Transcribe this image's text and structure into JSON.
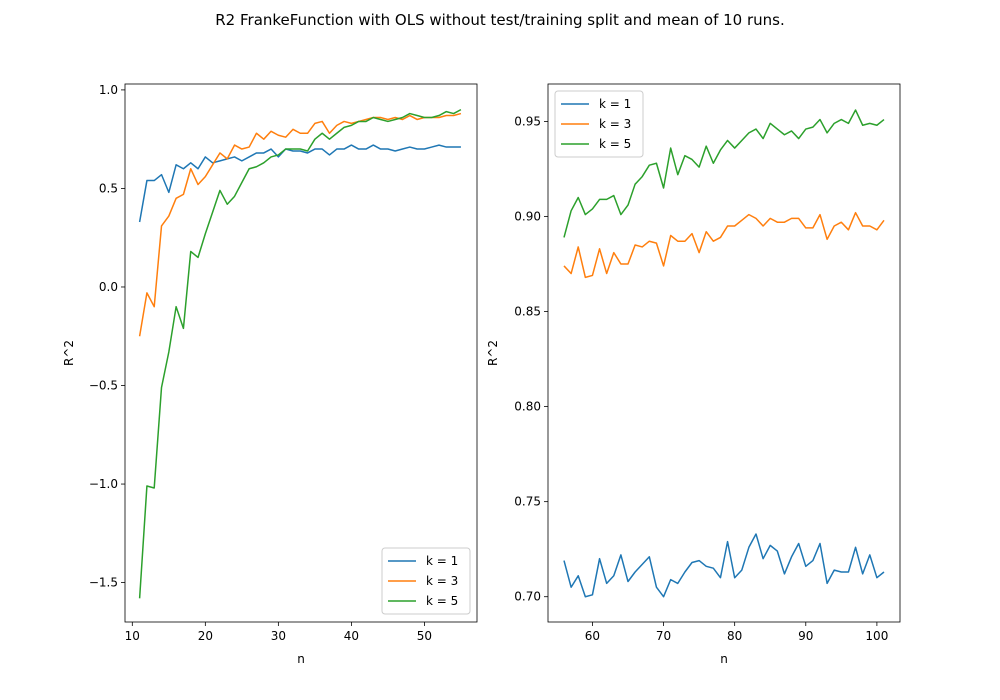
{
  "figure": {
    "title": "R2 FrankeFunction with OLS without test/training split and mean of 10 runs."
  },
  "chart_data": [
    {
      "type": "line",
      "xlabel": "n",
      "ylabel": "R^2",
      "xlim": [
        9,
        57.2
      ],
      "ylim": [
        -1.7,
        1.03
      ],
      "xticks": [
        10,
        20,
        30,
        40,
        50
      ],
      "yticks": [
        -1.5,
        -1.0,
        -0.5,
        0.0,
        0.5,
        1.0
      ],
      "ytick_labels": [
        "−1.5",
        "−1.0",
        "−0.5",
        "0.0",
        "0.5",
        "1.0"
      ],
      "legend_loc": "lower right",
      "x": [
        11,
        12,
        13,
        14,
        15,
        16,
        17,
        18,
        19,
        20,
        21,
        22,
        23,
        24,
        25,
        26,
        27,
        28,
        29,
        30,
        31,
        32,
        33,
        34,
        35,
        36,
        37,
        38,
        39,
        40,
        41,
        42,
        43,
        44,
        45,
        46,
        47,
        48,
        49,
        50,
        51,
        52,
        53,
        54,
        55
      ],
      "series": [
        {
          "name": "k = 1",
          "color": "#1f77b4",
          "values": [
            0.33,
            0.54,
            0.54,
            0.57,
            0.48,
            0.62,
            0.6,
            0.63,
            0.6,
            0.66,
            0.63,
            0.64,
            0.65,
            0.66,
            0.64,
            0.66,
            0.68,
            0.68,
            0.7,
            0.66,
            0.7,
            0.69,
            0.69,
            0.68,
            0.7,
            0.7,
            0.67,
            0.7,
            0.7,
            0.72,
            0.7,
            0.7,
            0.72,
            0.7,
            0.7,
            0.69,
            0.7,
            0.71,
            0.7,
            0.7,
            0.71,
            0.72,
            0.71,
            0.71,
            0.71
          ]
        },
        {
          "name": "k = 3",
          "color": "#ff7f0e",
          "values": [
            -0.25,
            -0.03,
            -0.1,
            0.31,
            0.36,
            0.45,
            0.47,
            0.6,
            0.52,
            0.56,
            0.62,
            0.68,
            0.65,
            0.72,
            0.7,
            0.71,
            0.78,
            0.75,
            0.79,
            0.77,
            0.76,
            0.8,
            0.78,
            0.78,
            0.83,
            0.84,
            0.78,
            0.82,
            0.84,
            0.83,
            0.84,
            0.85,
            0.86,
            0.86,
            0.85,
            0.86,
            0.85,
            0.87,
            0.85,
            0.86,
            0.86,
            0.86,
            0.87,
            0.87,
            0.88
          ]
        },
        {
          "name": "k = 5",
          "color": "#2ca02c",
          "values": [
            -1.58,
            -1.01,
            -1.02,
            -0.51,
            -0.33,
            -0.1,
            -0.21,
            0.18,
            0.15,
            0.27,
            0.38,
            0.49,
            0.42,
            0.46,
            0.53,
            0.6,
            0.61,
            0.63,
            0.66,
            0.67,
            0.7,
            0.7,
            0.7,
            0.69,
            0.75,
            0.78,
            0.75,
            0.78,
            0.81,
            0.82,
            0.84,
            0.84,
            0.86,
            0.85,
            0.84,
            0.85,
            0.86,
            0.88,
            0.87,
            0.86,
            0.86,
            0.87,
            0.89,
            0.88,
            0.9
          ]
        }
      ]
    },
    {
      "type": "line",
      "xlabel": "n",
      "ylabel": "R^2",
      "xlim": [
        53.75,
        103.25
      ],
      "ylim": [
        0.6867,
        0.9697
      ],
      "xticks": [
        60,
        70,
        80,
        90,
        100
      ],
      "yticks": [
        0.7,
        0.75,
        0.8,
        0.85,
        0.9,
        0.95
      ],
      "ytick_labels": [
        "0.70",
        "0.75",
        "0.80",
        "0.85",
        "0.90",
        "0.95"
      ],
      "legend_loc": "upper left",
      "x": [
        56,
        57,
        58,
        59,
        60,
        61,
        62,
        63,
        64,
        65,
        66,
        67,
        68,
        69,
        70,
        71,
        72,
        73,
        74,
        75,
        76,
        77,
        78,
        79,
        80,
        81,
        82,
        83,
        84,
        85,
        86,
        87,
        88,
        89,
        90,
        91,
        92,
        93,
        94,
        95,
        96,
        97,
        98,
        99,
        100,
        101
      ],
      "series": [
        {
          "name": "k = 1",
          "color": "#1f77b4",
          "values": [
            0.719,
            0.705,
            0.711,
            0.7,
            0.701,
            0.72,
            0.707,
            0.711,
            0.722,
            0.708,
            0.713,
            0.717,
            0.721,
            0.705,
            0.7,
            0.709,
            0.707,
            0.713,
            0.718,
            0.719,
            0.716,
            0.715,
            0.71,
            0.729,
            0.71,
            0.714,
            0.726,
            0.733,
            0.72,
            0.727,
            0.724,
            0.712,
            0.721,
            0.728,
            0.716,
            0.719,
            0.728,
            0.707,
            0.714,
            0.713,
            0.713,
            0.726,
            0.712,
            0.722,
            0.71,
            0.713
          ]
        },
        {
          "name": "k = 3",
          "color": "#ff7f0e",
          "values": [
            0.874,
            0.87,
            0.884,
            0.868,
            0.869,
            0.883,
            0.87,
            0.881,
            0.875,
            0.875,
            0.885,
            0.884,
            0.887,
            0.886,
            0.874,
            0.89,
            0.887,
            0.887,
            0.891,
            0.881,
            0.892,
            0.887,
            0.889,
            0.895,
            0.895,
            0.898,
            0.901,
            0.899,
            0.895,
            0.899,
            0.897,
            0.897,
            0.899,
            0.899,
            0.894,
            0.894,
            0.901,
            0.888,
            0.895,
            0.897,
            0.893,
            0.902,
            0.895,
            0.895,
            0.893,
            0.898
          ]
        },
        {
          "name": "k = 5",
          "color": "#2ca02c",
          "values": [
            0.889,
            0.903,
            0.91,
            0.901,
            0.904,
            0.909,
            0.909,
            0.911,
            0.901,
            0.906,
            0.917,
            0.921,
            0.927,
            0.928,
            0.915,
            0.936,
            0.922,
            0.932,
            0.93,
            0.926,
            0.937,
            0.928,
            0.935,
            0.94,
            0.936,
            0.94,
            0.944,
            0.946,
            0.941,
            0.949,
            0.946,
            0.943,
            0.945,
            0.941,
            0.946,
            0.947,
            0.951,
            0.944,
            0.949,
            0.951,
            0.949,
            0.956,
            0.948,
            0.949,
            0.948,
            0.951
          ]
        }
      ]
    }
  ]
}
